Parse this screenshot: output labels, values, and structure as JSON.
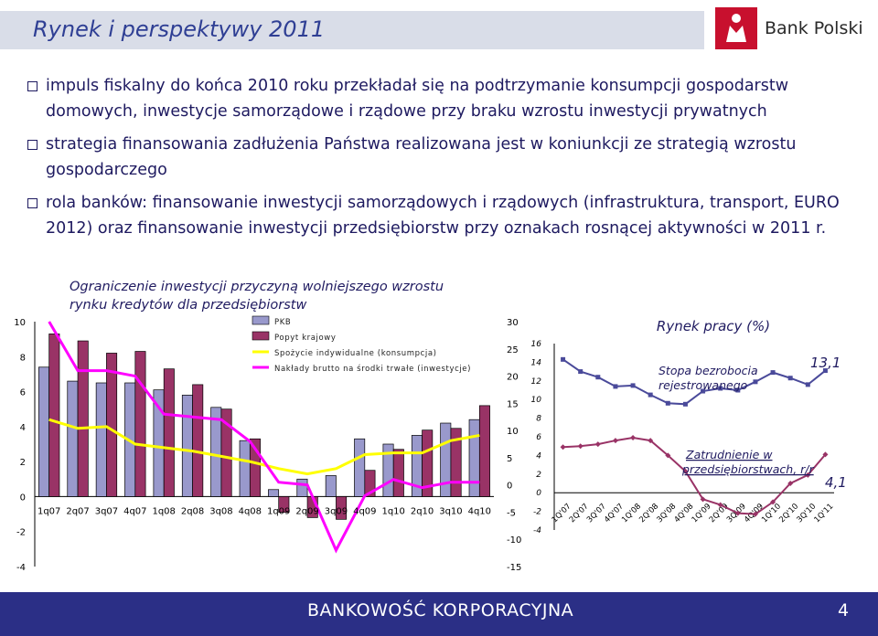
{
  "header": {
    "title": "Rynek i perspektywy 2011",
    "logo_text": "Bank Polski"
  },
  "bullets": [
    "impuls fiskalny do końca 2010 roku przekładał się na podtrzymanie konsumpcji gospodarstw domowych, inwestycje samorządowe i rządowe przy braku wzrostu inwestycji prywatnych",
    "strategia finansowania zadłużenia Państwa realizowana jest w koniunkcji ze strategią wzrostu gospodarczego",
    "rola banków: finansowanie inwestycji samorządowych i rządowych (infrastruktura, transport, EURO 2012) oraz finansowanie inwestycji przedsiębiorstw przy oznakach rosnącej aktywności w 2011 r."
  ],
  "sub_heading": "Ograniczenie inwestycji przyczyną wolniejszego wzrostu rynku kredytów dla przedsiębiorstw",
  "footer": {
    "text": "BANKOWOŚĆ KORPORACYJNA",
    "page": "4"
  },
  "chart_data": [
    {
      "type": "bar",
      "categories": [
        "1q07",
        "2q07",
        "3q07",
        "4q07",
        "1q08",
        "2q08",
        "3q08",
        "4q08",
        "1q09",
        "2q09",
        "3q09",
        "4q09",
        "1q10",
        "2q10",
        "3q10",
        "4q10"
      ],
      "series": [
        {
          "name": "PKB",
          "kind": "bar",
          "axis": "left",
          "color": "#9999cc",
          "values": [
            7.4,
            6.6,
            6.5,
            6.5,
            6.1,
            5.8,
            5.1,
            3.2,
            0.4,
            1.0,
            1.2,
            3.3,
            3.0,
            3.5,
            4.2,
            4.4
          ]
        },
        {
          "name": "Popyt krajowy",
          "kind": "bar",
          "axis": "left",
          "color": "#993366",
          "values": [
            9.3,
            8.9,
            8.2,
            8.3,
            7.3,
            6.4,
            5.0,
            3.3,
            -0.9,
            -1.2,
            -1.3,
            1.5,
            2.7,
            3.8,
            3.9,
            5.2
          ]
        },
        {
          "name": "Spożycie indywidualne (konsumpcja)",
          "kind": "line",
          "axis": "left",
          "color": "#ffff00",
          "values": [
            4.4,
            3.9,
            4.0,
            3.0,
            2.8,
            2.6,
            2.3,
            2.0,
            1.6,
            1.3,
            1.6,
            2.4,
            2.5,
            2.5,
            3.2,
            3.5
          ]
        },
        {
          "name": "Nakłady brutto na środki trwałe (inwestycje)",
          "kind": "line",
          "axis": "right",
          "color": "#ff00ff",
          "values": [
            30.0,
            21.0,
            21.0,
            20.0,
            13.0,
            12.5,
            12.0,
            8.0,
            0.5,
            0.0,
            -12.0,
            -2.0,
            1.0,
            -0.5,
            0.5,
            0.5
          ]
        }
      ],
      "yleft_ticks": [
        "10",
        "8",
        "6",
        "4",
        "2",
        "0",
        "-2",
        "-4"
      ],
      "yright_ticks": [
        "30",
        "25",
        "20",
        "15",
        "10",
        "5",
        "0",
        "-5",
        "-10",
        "-15"
      ],
      "ylim_left": [
        -4,
        10
      ],
      "ylim_right": [
        -15,
        30
      ]
    },
    {
      "type": "line",
      "title": "Rynek pracy (%)",
      "categories": [
        "1Q'07",
        "2Q'07",
        "3Q'07",
        "4Q'07",
        "1Q'08",
        "2Q'08",
        "3Q'08",
        "4Q'08",
        "1Q'09",
        "2Q'09",
        "3Q'09",
        "4Q'09",
        "1Q'10",
        "2Q'10",
        "3Q'10",
        "1Q'11"
      ],
      "series": [
        {
          "name": "Stopa bezrobocia rejestrowanego",
          "color": "#4a4a9a",
          "values": [
            14.3,
            13.0,
            12.4,
            11.4,
            11.5,
            10.5,
            9.6,
            9.5,
            10.9,
            11.2,
            11.0,
            11.9,
            12.9,
            12.3,
            11.6,
            13.1
          ],
          "end_label": "13,1"
        },
        {
          "name": "Zatrudnienie w przedsiębiorstwach, r/r",
          "color": "#993366",
          "values": [
            4.9,
            5.0,
            5.2,
            5.6,
            5.9,
            5.6,
            4.0,
            2.3,
            -0.7,
            -1.3,
            -2.2,
            -2.3,
            -1.0,
            1.0,
            1.9,
            4.1
          ],
          "end_label": "4,1"
        }
      ],
      "yticks": [
        "16",
        "14",
        "12",
        "10",
        "8",
        "6",
        "4",
        "2",
        "0",
        "-2",
        "-4"
      ],
      "ylim": [
        -4,
        16
      ]
    }
  ]
}
